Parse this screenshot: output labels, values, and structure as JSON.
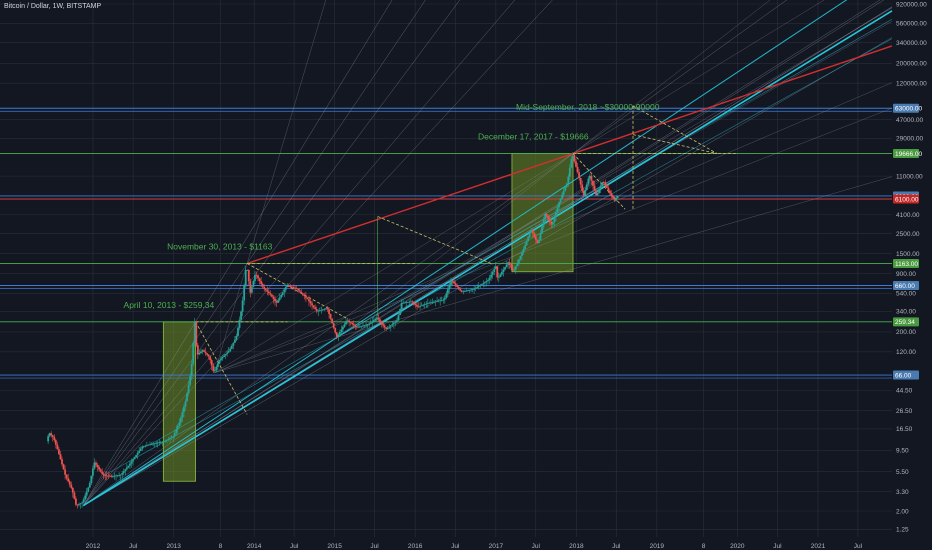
{
  "header": {
    "title": "Bitcoin / Dollar, 1W, BITSTAMP"
  },
  "colors": {
    "background": "#131722",
    "grid": "#2a2e39",
    "candle_up": "#26a69a",
    "candle_down": "#ef5350",
    "fan_line": "#9aa0ae",
    "trend_red": "#d32f2f",
    "trend_cyan": "#26c6da",
    "box_fill": "#6b8e23",
    "annotation": "#4caf50",
    "level_blue": "#3f7bd6",
    "level_green": "#4caf50",
    "level_red": "#e53935",
    "dashed_yellow": "#c9c26a"
  },
  "chart_data": {
    "type": "candlestick",
    "title": "Bitcoin / Dollar, 1W, BITSTAMP",
    "y_scale": "log",
    "ylim": [
      1.0,
      1000000
    ],
    "y_ticks": [
      {
        "value": 920000,
        "label": "920000.00"
      },
      {
        "value": 560000,
        "label": "560000.00"
      },
      {
        "value": 340000,
        "label": "340000.00"
      },
      {
        "value": 200000,
        "label": "200000.00"
      },
      {
        "value": 120000,
        "label": "120000.00"
      },
      {
        "value": 47000,
        "label": "47000.00"
      },
      {
        "value": 29000,
        "label": "29000.00"
      },
      {
        "value": 11000,
        "label": "11000.00"
      },
      {
        "value": 4100,
        "label": "4100.00"
      },
      {
        "value": 2500,
        "label": "2500.00"
      },
      {
        "value": 1500,
        "label": "1500.00"
      },
      {
        "value": 900,
        "label": "900.00"
      },
      {
        "value": 540,
        "label": "540.00"
      },
      {
        "value": 340,
        "label": "340.00"
      },
      {
        "value": 200,
        "label": "200.00"
      },
      {
        "value": 120,
        "label": "120.00"
      },
      {
        "value": 44.5,
        "label": "44.50"
      },
      {
        "value": 26.5,
        "label": "26.50"
      },
      {
        "value": 16.5,
        "label": "16.50"
      },
      {
        "value": 9.5,
        "label": "9.50"
      },
      {
        "value": 5.5,
        "label": "5.50"
      },
      {
        "value": 3.3,
        "label": "3.30"
      },
      {
        "value": 2.0,
        "label": "2.00"
      },
      {
        "value": 1.25,
        "label": "1.25"
      }
    ],
    "x_ticks": [
      {
        "date": "2012-01-01",
        "label": "2012"
      },
      {
        "date": "2012-07-01",
        "label": "Jul"
      },
      {
        "date": "2013-01-01",
        "label": "2013"
      },
      {
        "date": "2013-08-01",
        "label": "8"
      },
      {
        "date": "2014-01-01",
        "label": "2014"
      },
      {
        "date": "2014-07-01",
        "label": "Jul"
      },
      {
        "date": "2015-01-01",
        "label": "2015"
      },
      {
        "date": "2015-07-01",
        "label": "Jul"
      },
      {
        "date": "2016-01-01",
        "label": "2016"
      },
      {
        "date": "2016-07-01",
        "label": "Jul"
      },
      {
        "date": "2017-01-01",
        "label": "2017"
      },
      {
        "date": "2017-07-01",
        "label": "Jul"
      },
      {
        "date": "2018-01-01",
        "label": "2018"
      },
      {
        "date": "2018-07-01",
        "label": "Jul"
      },
      {
        "date": "2019-01-01",
        "label": "2019"
      },
      {
        "date": "2019-08-01",
        "label": "8"
      },
      {
        "date": "2020-01-01",
        "label": "2020"
      },
      {
        "date": "2020-07-01",
        "label": "Jul"
      },
      {
        "date": "2021-01-01",
        "label": "2021"
      },
      {
        "date": "2021-07-01",
        "label": "Jul"
      }
    ],
    "price_path": [
      [
        "2011-06-08",
        12
      ],
      [
        "2011-06-20",
        15
      ],
      [
        "2011-07-10",
        13
      ],
      [
        "2011-08-01",
        9
      ],
      [
        "2011-09-01",
        5
      ],
      [
        "2011-10-01",
        3.5
      ],
      [
        "2011-10-20",
        2.3
      ],
      [
        "2011-11-18",
        2.5
      ],
      [
        "2011-12-20",
        4
      ],
      [
        "2012-01-10",
        7
      ],
      [
        "2012-02-20",
        5
      ],
      [
        "2012-04-01",
        4.9
      ],
      [
        "2012-05-10",
        5.1
      ],
      [
        "2012-06-15",
        6.5
      ],
      [
        "2012-08-15",
        10.5
      ],
      [
        "2012-09-15",
        11
      ],
      [
        "2012-10-15",
        11.5
      ],
      [
        "2012-11-20",
        12
      ],
      [
        "2013-01-01",
        13.5
      ],
      [
        "2013-02-01",
        20
      ],
      [
        "2013-03-01",
        35
      ],
      [
        "2013-03-25",
        75
      ],
      [
        "2013-04-10",
        259.34
      ],
      [
        "2013-04-20",
        110
      ],
      [
        "2013-05-15",
        125
      ],
      [
        "2013-06-15",
        105
      ],
      [
        "2013-07-05",
        70
      ],
      [
        "2013-08-01",
        98
      ],
      [
        "2013-09-15",
        125
      ],
      [
        "2013-10-15",
        175
      ],
      [
        "2013-11-10",
        380
      ],
      [
        "2013-11-30",
        1163
      ],
      [
        "2013-12-18",
        550
      ],
      [
        "2014-01-10",
        900
      ],
      [
        "2014-02-15",
        620
      ],
      [
        "2014-03-20",
        520
      ],
      [
        "2014-04-15",
        420
      ],
      [
        "2014-06-01",
        660
      ],
      [
        "2014-07-15",
        610
      ],
      [
        "2014-09-01",
        470
      ],
      [
        "2014-10-15",
        340
      ],
      [
        "2014-12-01",
        370
      ],
      [
        "2015-01-14",
        175
      ],
      [
        "2015-03-01",
        270
      ],
      [
        "2015-04-15",
        225
      ],
      [
        "2015-06-15",
        250
      ],
      [
        "2015-07-15",
        290
      ],
      [
        "2015-08-25",
        215
      ],
      [
        "2015-10-15",
        270
      ],
      [
        "2015-11-04",
        420
      ],
      [
        "2015-12-20",
        440
      ],
      [
        "2016-01-15",
        380
      ],
      [
        "2016-03-01",
        420
      ],
      [
        "2016-05-15",
        460
      ],
      [
        "2016-06-16",
        760
      ],
      [
        "2016-08-01",
        560
      ],
      [
        "2016-10-01",
        610
      ],
      [
        "2016-12-01",
        760
      ],
      [
        "2017-01-04",
        1080
      ],
      [
        "2017-01-12",
        780
      ],
      [
        "2017-03-01",
        1200
      ],
      [
        "2017-03-25",
        940
      ],
      [
        "2017-05-15",
        1800
      ],
      [
        "2017-06-12",
        2800
      ],
      [
        "2017-07-15",
        1900
      ],
      [
        "2017-08-15",
        4200
      ],
      [
        "2017-09-15",
        3100
      ],
      [
        "2017-10-20",
        5800
      ],
      [
        "2017-11-25",
        9500
      ],
      [
        "2017-12-17",
        19666
      ],
      [
        "2018-01-15",
        11000
      ],
      [
        "2018-02-06",
        6500
      ],
      [
        "2018-03-05",
        11500
      ],
      [
        "2018-04-05",
        6600
      ],
      [
        "2018-05-05",
        9800
      ],
      [
        "2018-06-01",
        7400
      ],
      [
        "2018-06-28",
        5800
      ],
      [
        "2018-07-08",
        6600
      ]
    ],
    "annotations": [
      {
        "text": "April 10, 2013 - $259.34",
        "date": "2013-04-10",
        "value": 259.34
      },
      {
        "text": "November 30, 2013 - $1163",
        "date": "2013-11-30",
        "value": 1163
      },
      {
        "text": "December 17, 2017 - $19666",
        "date": "2017-12-17",
        "value": 19666
      },
      {
        "text": "Mid-September, 2018 ~$30000-90000",
        "date": "2018-09-15",
        "value": 30000
      }
    ],
    "price_levels": [
      {
        "value": 63000,
        "label": "63000.00",
        "color": "level_blue"
      },
      {
        "value": 19666,
        "label": "19666.00",
        "color": "level_green"
      },
      {
        "value": 6600,
        "label": "6600.00",
        "color": "level_blue"
      },
      {
        "value": 6100,
        "label": "6100.00",
        "color": "level_red"
      },
      {
        "value": 1163,
        "label": "1163.00",
        "color": "level_green"
      },
      {
        "value": 660,
        "label": "660.00",
        "color": "level_blue"
      },
      {
        "value": 259.34,
        "label": "259.34",
        "color": "level_green"
      },
      {
        "value": 66,
        "label": "66.00",
        "color": "level_blue"
      }
    ],
    "highlight_boxes": [
      {
        "start": "2012-11-15",
        "end": "2013-04-10",
        "low": 4.3,
        "high": 259.34
      },
      {
        "start": "2017-03-15",
        "end": "2017-12-17",
        "low": 940,
        "high": 19666
      }
    ]
  }
}
